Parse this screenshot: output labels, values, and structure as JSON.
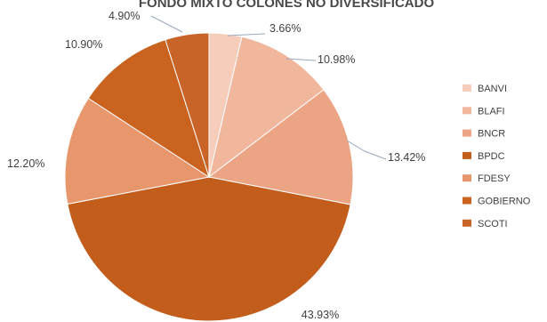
{
  "chart_data": {
    "type": "pie",
    "title": "FONDO MIXTO COLONES  NO DIVERSIFICADO",
    "legend_position": "right",
    "slices": [
      {
        "label": "BANVI",
        "value": 3.66,
        "display": "3.66%",
        "color": "#f6cdbb"
      },
      {
        "label": "BLAFI",
        "value": 10.98,
        "display": "10.98%",
        "color": "#f0b79c"
      },
      {
        "label": "BNCR",
        "value": 13.42,
        "display": "13.42%",
        "color": "#eba585"
      },
      {
        "label": "BPDC",
        "value": 43.93,
        "display": "43.93%",
        "color": "#c25d1c"
      },
      {
        "label": "FDESY",
        "value": 12.2,
        "display": "12.20%",
        "color": "#e8976d"
      },
      {
        "label": "GOBIERNO",
        "value": 10.9,
        "display": "10.90%",
        "color": "#c9631f"
      },
      {
        "label": "SCOTI",
        "value": 4.9,
        "display": "4.90%",
        "color": "#c86427"
      }
    ]
  }
}
